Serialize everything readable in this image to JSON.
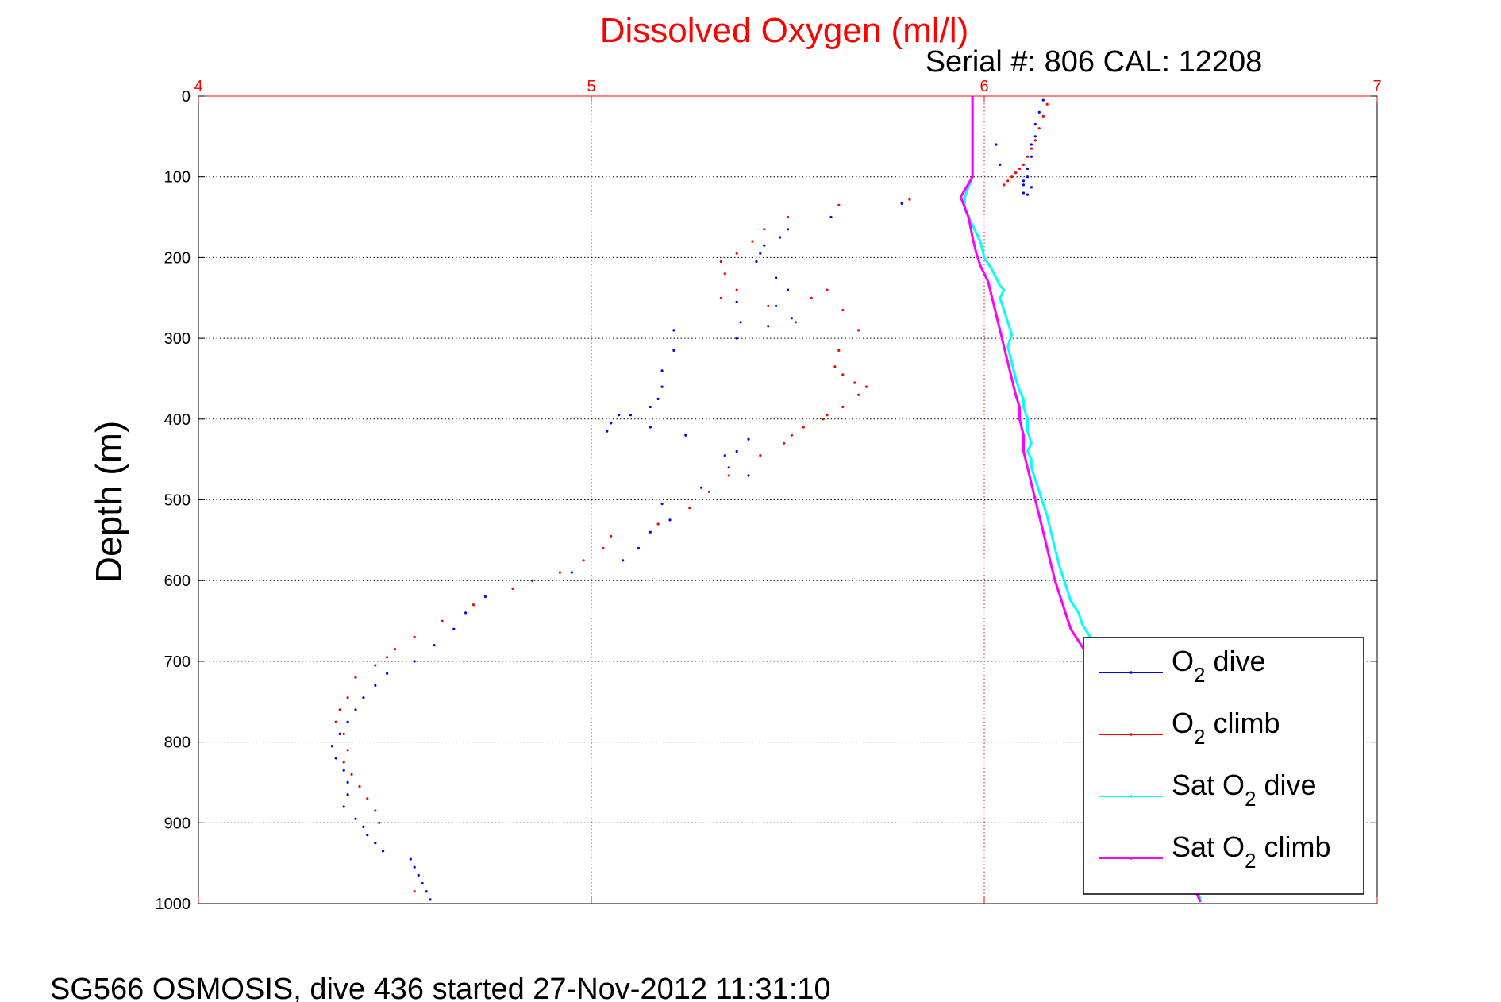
{
  "chart_data": {
    "type": "scatter",
    "title": "Dissolved Oxygen (ml/l)",
    "subtitle": "Serial #: 806  CAL: 12208",
    "footer": "SG566 OSMOSIS, dive 436 started 27-Nov-2012 11:31:10",
    "xlabel": "",
    "ylabel": "Depth (m)",
    "xlim": [
      4,
      7
    ],
    "ylim": [
      0,
      1000
    ],
    "y_reversed": true,
    "x_axis_position": "top",
    "x_ticks": [
      "4",
      "5",
      "6",
      "7"
    ],
    "y_ticks": [
      "0",
      "100",
      "200",
      "300",
      "400",
      "500",
      "600",
      "700",
      "800",
      "900",
      "1000"
    ],
    "grid": true,
    "legend_position": "bottom-right",
    "colors": {
      "title": "#ff0000",
      "x_axis": "#ff0000",
      "grid_x": "#ff0000",
      "grid_y": "#000000",
      "o2_dive": "#0000ff",
      "o2_climb": "#ff0000",
      "sat_dive": "#00ffff",
      "sat_climb": "#ff00ff"
    },
    "series": [
      {
        "name": "O2 dive",
        "legend_main": "O",
        "legend_sub": "2",
        "legend_rest": " dive",
        "style": "dots",
        "color": "#0000ff",
        "x": [
          6.15,
          6.14,
          6.13,
          6.13,
          6.12,
          6.12,
          6.11,
          6.11,
          6.1,
          6.1,
          6.11,
          6.12,
          6.1,
          6.08,
          6.04,
          6.03,
          5.79,
          5.61,
          5.5,
          5.48,
          5.44,
          5.43,
          5.42,
          5.47,
          5.5,
          5.47,
          5.37,
          5.51,
          5.45,
          5.37,
          5.38,
          5.21,
          5.21,
          5.18,
          5.18,
          5.17,
          5.15,
          5.1,
          5.07,
          5.05,
          5.04,
          5.15,
          5.24,
          5.4,
          5.37,
          5.34,
          5.35,
          5.4,
          5.28,
          5.18,
          5.2,
          5.15,
          5.12,
          5.08,
          4.95,
          4.85,
          4.73,
          4.68,
          4.65,
          4.6,
          4.55,
          4.48,
          4.45,
          4.42,
          4.4,
          4.38,
          4.36,
          4.34,
          4.35,
          4.37,
          4.38,
          4.38,
          4.37,
          4.4,
          4.42,
          4.43,
          4.45,
          4.47,
          4.54,
          4.55,
          4.56,
          4.57,
          4.58,
          4.59
        ],
        "y": [
          5,
          20,
          35,
          50,
          60,
          75,
          90,
          100,
          110,
          120,
          122,
          113,
          105,
          95,
          85,
          60,
          133,
          150,
          165,
          175,
          185,
          195,
          205,
          225,
          240,
          260,
          255,
          275,
          285,
          300,
          280,
          290,
          315,
          340,
          360,
          375,
          385,
          395,
          395,
          405,
          415,
          410,
          420,
          425,
          440,
          445,
          460,
          470,
          485,
          505,
          525,
          540,
          560,
          575,
          590,
          600,
          620,
          640,
          660,
          680,
          700,
          715,
          730,
          745,
          760,
          775,
          790,
          805,
          820,
          835,
          850,
          865,
          880,
          895,
          905,
          915,
          925,
          935,
          945,
          955,
          965,
          975,
          985,
          995
        ]
      },
      {
        "name": "O2 climb",
        "legend_main": "O",
        "legend_sub": "2",
        "legend_rest": " climb",
        "style": "dots",
        "color": "#ff0000",
        "x": [
          6.16,
          6.15,
          6.14,
          6.13,
          6.12,
          6.11,
          6.1,
          6.09,
          6.08,
          6.07,
          6.06,
          6.05,
          5.95,
          5.81,
          5.63,
          5.5,
          5.44,
          5.41,
          5.37,
          5.33,
          5.34,
          5.33,
          5.37,
          5.45,
          5.52,
          5.56,
          5.6,
          5.64,
          5.68,
          5.63,
          5.62,
          5.64,
          5.67,
          5.7,
          5.68,
          5.64,
          5.6,
          5.59,
          5.54,
          5.51,
          5.49,
          5.43,
          5.35,
          5.3,
          5.25,
          5.17,
          5.05,
          5.03,
          4.98,
          4.92,
          4.8,
          4.7,
          4.62,
          4.55,
          4.5,
          4.48,
          4.45,
          4.4,
          4.38,
          4.36,
          4.35,
          4.37,
          4.38,
          4.37,
          4.39,
          4.41,
          4.43,
          4.45,
          4.46,
          4.55
        ],
        "y": [
          10,
          25,
          40,
          55,
          65,
          75,
          85,
          90,
          95,
          100,
          105,
          110,
          125,
          128,
          135,
          150,
          165,
          180,
          195,
          205,
          220,
          250,
          240,
          260,
          280,
          250,
          240,
          265,
          290,
          315,
          335,
          345,
          355,
          360,
          370,
          385,
          395,
          400,
          410,
          420,
          430,
          445,
          470,
          490,
          510,
          530,
          545,
          560,
          575,
          590,
          610,
          630,
          650,
          670,
          685,
          695,
          705,
          720,
          745,
          760,
          775,
          790,
          810,
          825,
          840,
          855,
          870,
          885,
          900,
          985
        ]
      },
      {
        "name": "Sat O2 dive",
        "legend_main": "Sat O",
        "legend_sub": "2",
        "legend_rest": " dive",
        "style": "line",
        "color": "#00ffff",
        "x": [
          5.97,
          5.97,
          5.97,
          5.97,
          5.97,
          5.97,
          5.95,
          5.95,
          5.97,
          5.99,
          6.0,
          6.02,
          6.03,
          6.04,
          6.05,
          6.04,
          6.05,
          6.06,
          6.07,
          6.06,
          6.07,
          6.08,
          6.09,
          6.1,
          6.1,
          6.11,
          6.11,
          6.12,
          6.11,
          6.12,
          6.12,
          6.13,
          6.14,
          6.15,
          6.16,
          6.17,
          6.18,
          6.19,
          6.2,
          6.21,
          6.22,
          6.24,
          6.25,
          6.27,
          6.3,
          6.35,
          6.4,
          6.45,
          6.5,
          6.55
        ],
        "y": [
          0,
          20,
          40,
          60,
          80,
          100,
          125,
          140,
          160,
          180,
          200,
          215,
          225,
          235,
          240,
          250,
          265,
          280,
          295,
          310,
          330,
          350,
          365,
          375,
          385,
          400,
          415,
          430,
          440,
          450,
          460,
          475,
          490,
          505,
          520,
          540,
          560,
          580,
          595,
          610,
          625,
          640,
          655,
          670,
          700,
          750,
          800,
          860,
          920,
          995
        ]
      },
      {
        "name": "Sat O2 climb",
        "legend_main": "Sat O",
        "legend_sub": "2",
        "legend_rest": " climb",
        "style": "line",
        "color": "#ff00ff",
        "x": [
          5.97,
          5.97,
          5.97,
          5.97,
          5.97,
          5.97,
          5.94,
          5.96,
          5.97,
          5.98,
          5.99,
          6.0,
          6.01,
          6.02,
          6.03,
          6.04,
          6.05,
          6.06,
          6.07,
          6.08,
          6.09,
          6.09,
          6.1,
          6.1,
          6.11,
          6.12,
          6.13,
          6.14,
          6.15,
          6.16,
          6.17,
          6.18,
          6.19,
          6.2,
          6.21,
          6.22,
          6.24,
          6.26,
          6.3,
          6.35,
          6.4,
          6.45,
          6.5,
          6.55
        ],
        "y": [
          0,
          20,
          40,
          60,
          80,
          100,
          125,
          150,
          175,
          195,
          210,
          220,
          230,
          250,
          270,
          290,
          310,
          330,
          350,
          370,
          385,
          400,
          420,
          440,
          460,
          480,
          500,
          520,
          540,
          560,
          580,
          600,
          615,
          630,
          645,
          660,
          675,
          690,
          720,
          770,
          820,
          880,
          940,
          998
        ]
      }
    ]
  }
}
